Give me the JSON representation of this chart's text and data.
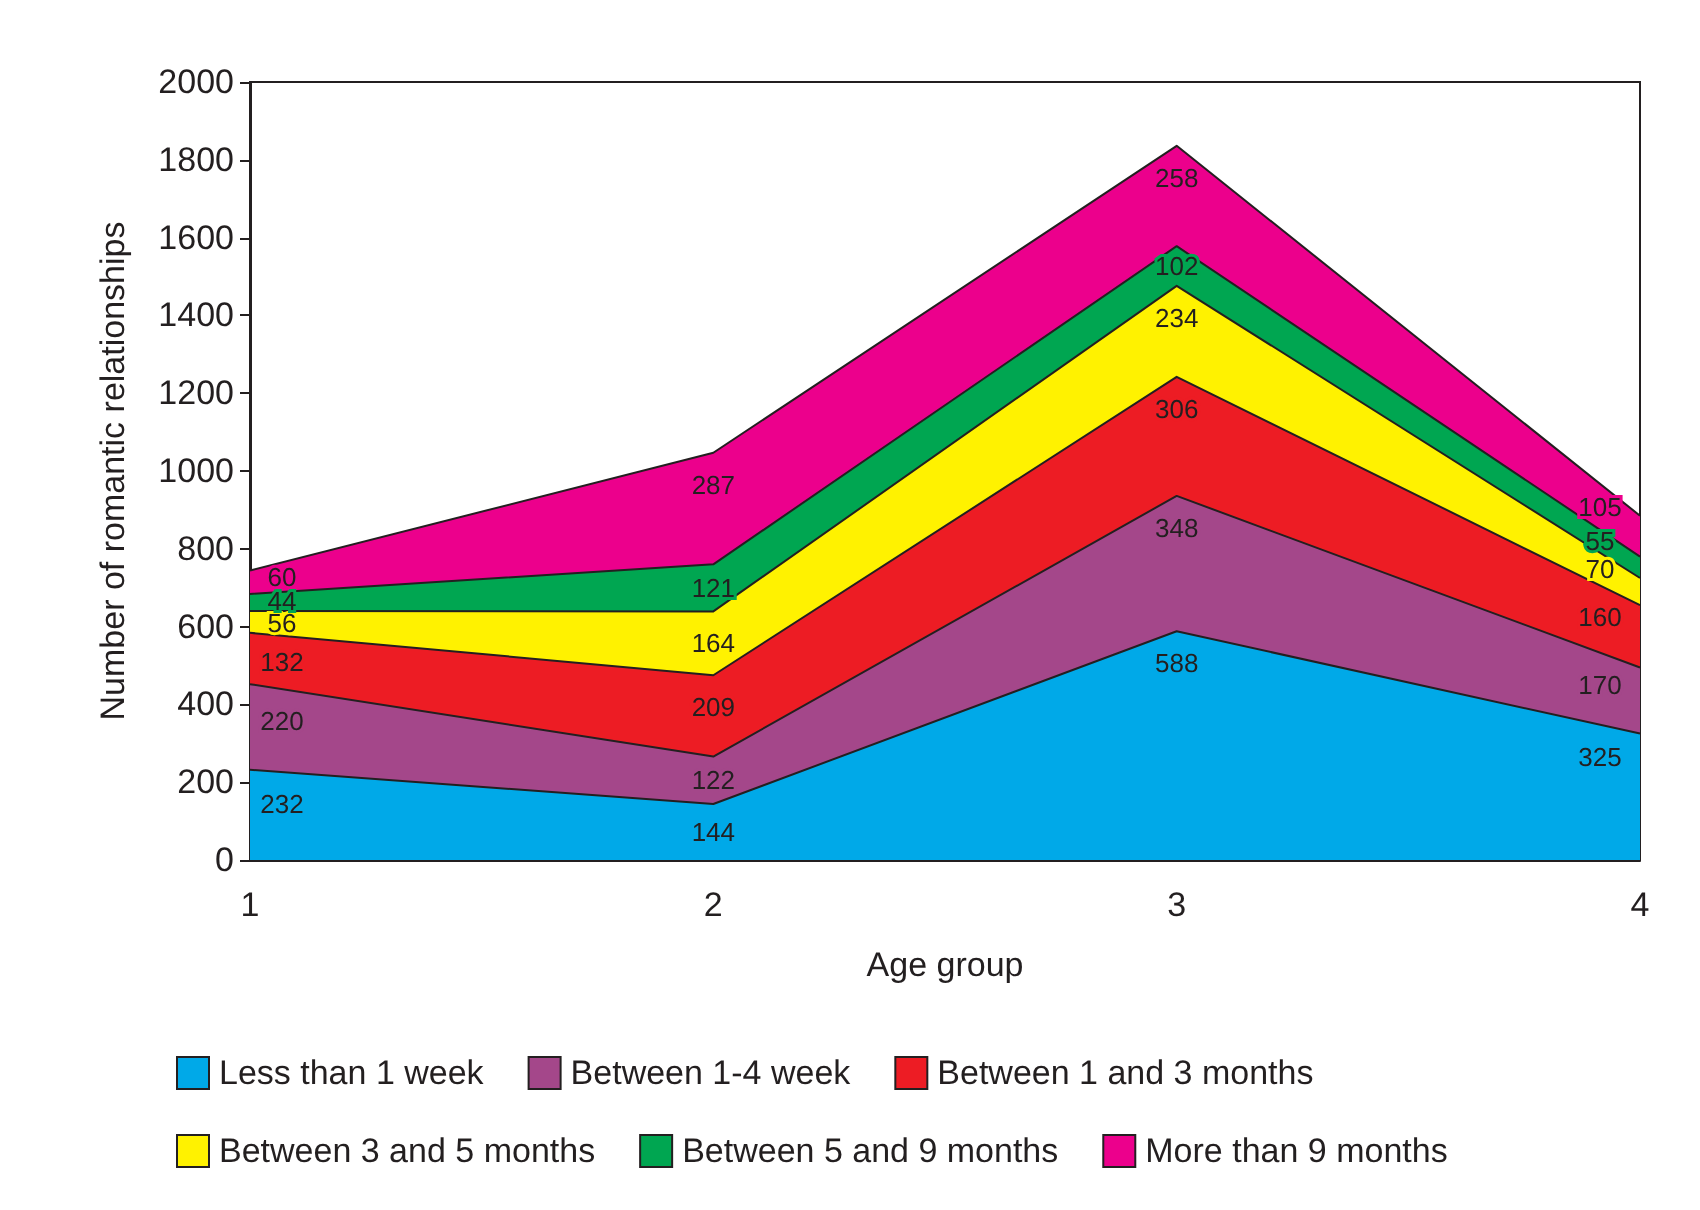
{
  "chart_data": {
    "type": "area",
    "stacked": true,
    "xlabel": "Age group",
    "ylabel": "Number of romantic relationships",
    "categories": [
      "1",
      "2",
      "3",
      "4"
    ],
    "ylim": [
      0,
      2000
    ],
    "yticks": [
      0,
      200,
      400,
      600,
      800,
      1000,
      1200,
      1400,
      1600,
      1800,
      2000
    ],
    "grid": false,
    "legend": "bottom",
    "data_labels": true,
    "marker": "none",
    "series": [
      {
        "name": "Less than 1 week",
        "color": "#00a9e8",
        "values": [
          232,
          144,
          588,
          325
        ]
      },
      {
        "name": "Between 1-4 week",
        "color": "#a4478a",
        "values": [
          220,
          122,
          348,
          170
        ]
      },
      {
        "name": "Between 1 and 3 months",
        "color": "#ed1c24",
        "values": [
          132,
          209,
          306,
          160
        ]
      },
      {
        "name": "Between 3 and 5 months",
        "color": "#fff200",
        "values": [
          56,
          164,
          234,
          70
        ]
      },
      {
        "name": "Between 5 and 9 months",
        "color": "#00a651",
        "values": [
          44,
          121,
          102,
          55
        ]
      },
      {
        "name": "More than 9 months",
        "color": "#ec008c",
        "values": [
          60,
          287,
          258,
          105
        ]
      }
    ]
  }
}
